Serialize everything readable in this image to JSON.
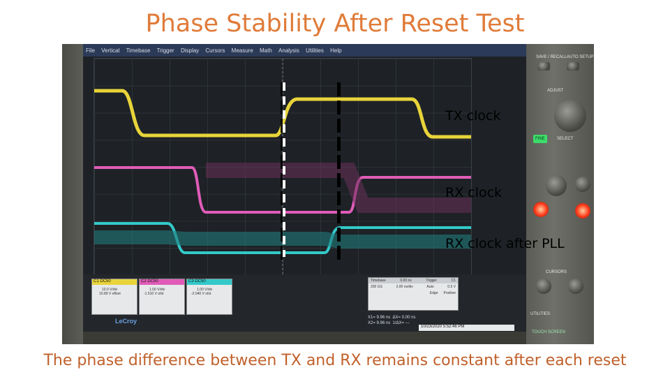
{
  "slide": {
    "title": "Phase Stability After Reset Test",
    "caption": "The phase difference between TX and RX remains constant after each reset"
  },
  "scope": {
    "menu": [
      "File",
      "Vertical",
      "Timebase",
      "Trigger",
      "Display",
      "Cursors",
      "Measure",
      "Math",
      "Analysis",
      "Utilities",
      "Help"
    ],
    "channels": [
      {
        "name": "C1",
        "badge": "DC50",
        "vdiv": "10.0 V/div",
        "offset": "10.89 V offset",
        "color": "#e8d43a"
      },
      {
        "name": "C2",
        "badge": "DC50",
        "vdiv": "1.00 V/div",
        "offset": "-1.510 V ofst",
        "color": "#e05cb8"
      },
      {
        "name": "C3",
        "badge": "DC50",
        "vdiv": "1.00 V/div",
        "offset": "-2.040 V ofst",
        "color": "#33c9c9"
      }
    ],
    "timebase": {
      "header": "Timebase",
      "value": "0.00 ns",
      "row2a": "200 GS",
      "row2b": "2.00 ns/div",
      "trigger_hdr": "Trigger",
      "trigger_ch": "C1",
      "mode": "Auto",
      "level": "0.5 V",
      "edge": "Edge",
      "slope": "Positive"
    },
    "measurements": {
      "x1": "X1= 9.96 ns",
      "dx": "ΔX= 0.00 ns",
      "x2": "X2= 9.96 ns",
      "inv": "1/ΔX= ---"
    },
    "datetime": "10/23/2020 5:52:46 PM",
    "brand": "LeCroy"
  },
  "annotations": {
    "tx": "TX clock",
    "rx": "RX clock",
    "rx_pll": "RX clock after PLL"
  },
  "panel": {
    "save_recall": "SAVE / RECALL",
    "auto_setup": "AUTO SETUP",
    "adjust": "ADJUST",
    "fine": "FINE",
    "select": "SELECT",
    "cursors": "CURSORS",
    "utilities": "UTILITIES",
    "touch_screen": "TOUCH SCREEN"
  },
  "colors": {
    "title": "#e07b39",
    "caption": "#c0602a",
    "ch1": "#e8d43a",
    "ch2": "#e05cb8",
    "ch3": "#33c9c9"
  }
}
